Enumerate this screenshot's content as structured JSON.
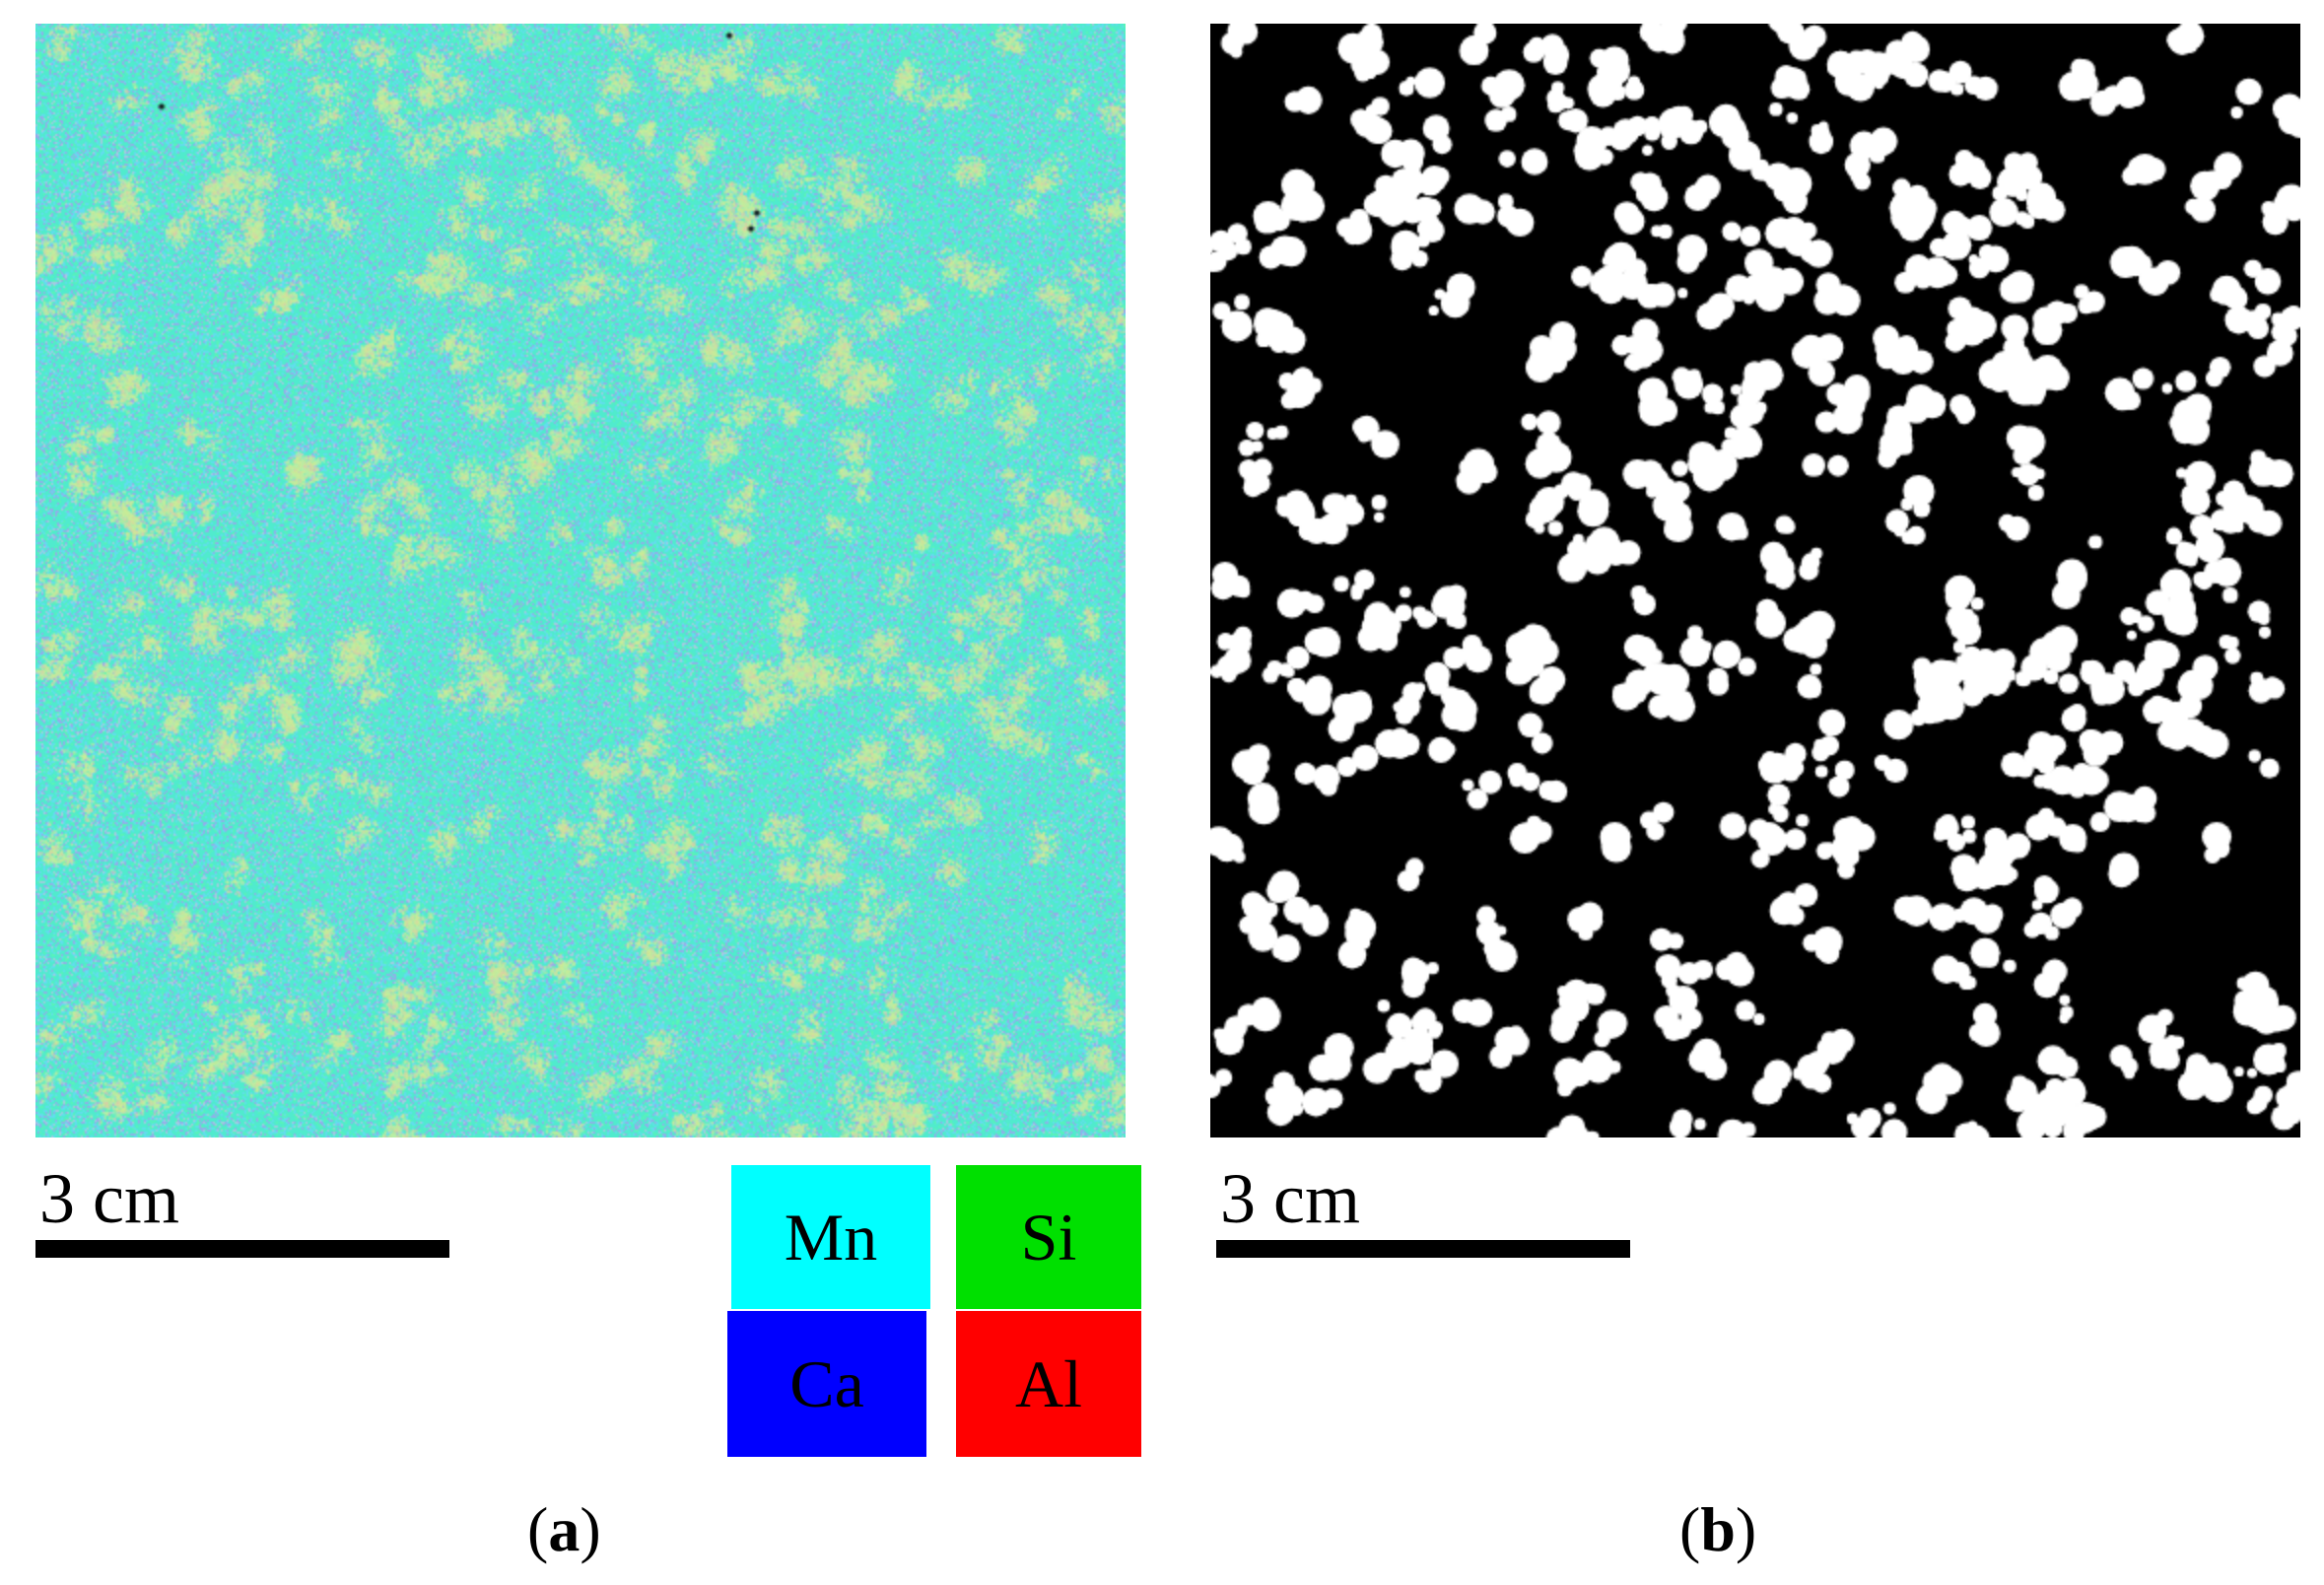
{
  "panels": [
    {
      "id": "a",
      "caption_open": "(",
      "caption_letter": "a",
      "caption_close": ")",
      "scale_bar_label": "3 cm",
      "background_color": "#58e8cf"
    },
    {
      "id": "b",
      "caption_open": "(",
      "caption_letter": "b",
      "caption_close": ")",
      "scale_bar_label": "3 cm",
      "background_color": "#000000"
    }
  ],
  "legend": [
    {
      "element": "Mn",
      "color": "#00ffff"
    },
    {
      "element": "Si",
      "color": "#00e000"
    },
    {
      "element": "Ca",
      "color": "#0000ff"
    },
    {
      "element": "Al",
      "color": "#ff0000"
    }
  ]
}
